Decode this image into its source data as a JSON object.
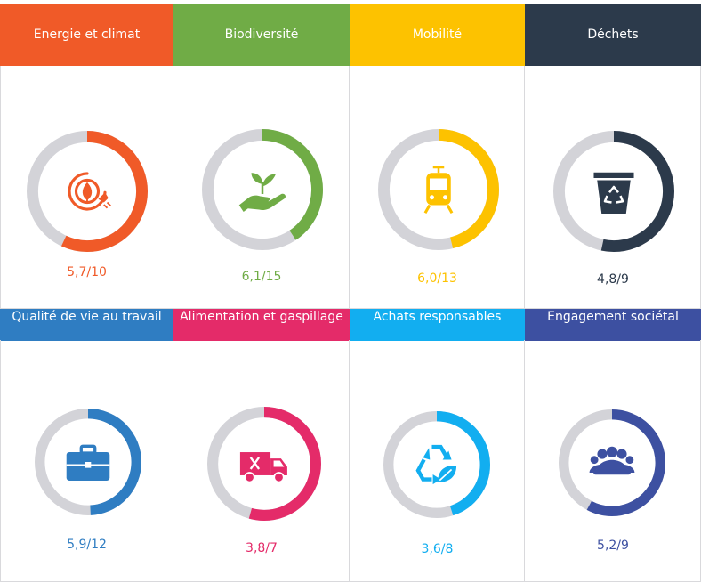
{
  "colors": {
    "track": "#d3d3d8",
    "energie": "#f05a28",
    "biodiversite": "#70ac46",
    "mobilite": "#fdc200",
    "dechets": "#2c3a4b",
    "qualite": "#2f7dc2",
    "alimentation": "#e42b69",
    "achats": "#12aef0",
    "engagement": "#3d50a1"
  },
  "cards": [
    {
      "title": "Energie et climat",
      "score_text": "5,7/10",
      "value": 5.7,
      "max": 10,
      "color": "#f05a28",
      "icon": "eco-energy-plug-icon"
    },
    {
      "title": "Biodiversité",
      "score_text": "6,1/15",
      "value": 6.1,
      "max": 15,
      "color": "#70ac46",
      "icon": "hand-plant-icon"
    },
    {
      "title": "Mobilité",
      "score_text": "6,0/13",
      "value": 6.0,
      "max": 13,
      "color": "#fdc200",
      "icon": "tram-icon"
    },
    {
      "title": "Déchets",
      "score_text": "4,8/9",
      "value": 4.8,
      "max": 9,
      "color": "#2c3a4b",
      "icon": "recycle-bin-icon"
    },
    {
      "title": "Qualité de vie au travail",
      "score_text": "5,9/12",
      "value": 5.9,
      "max": 12,
      "color": "#2f7dc2",
      "icon": "briefcase-icon"
    },
    {
      "title": "Alimentation et gaspillage",
      "score_text": "3,8/7",
      "value": 3.8,
      "max": 7,
      "color": "#e42b69",
      "icon": "food-truck-icon"
    },
    {
      "title": "Achats responsables",
      "score_text": "3,6/8",
      "value": 3.6,
      "max": 8,
      "color": "#12aef0",
      "icon": "recycle-leaf-icon"
    },
    {
      "title": "Engagement sociétal",
      "score_text": "5,2/9",
      "value": 5.2,
      "max": 9,
      "color": "#3d50a1",
      "icon": "group-people-icon"
    }
  ]
}
